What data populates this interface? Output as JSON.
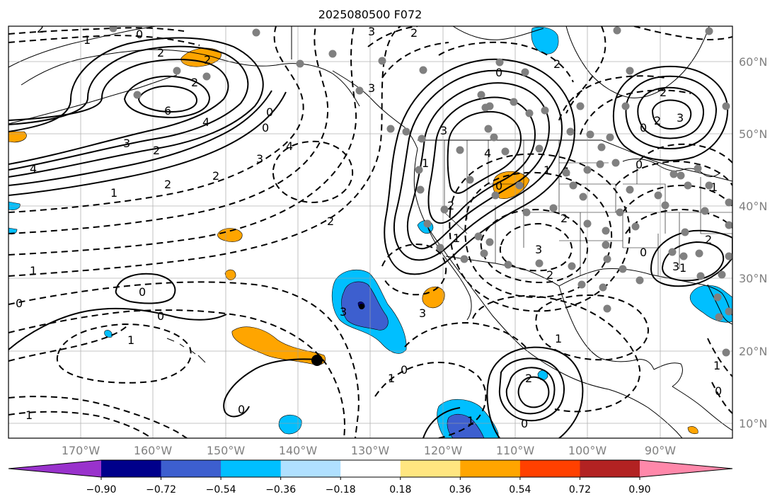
{
  "title": "2025080500 F072",
  "map": {
    "lon_range": [
      -180,
      -80
    ],
    "lat_range": [
      8,
      65
    ],
    "latitude_labels": [
      "60°N",
      "50°N",
      "40°N",
      "30°N",
      "20°N",
      "10°N"
    ],
    "longitude_labels": [
      "170°W",
      "160°W",
      "150°W",
      "140°W",
      "130°W",
      "120°W",
      "110°W",
      "100°W",
      "90°W"
    ],
    "contour_style": "solid = positive, dashed = negative",
    "contour_labels": [
      "2",
      "1",
      "0",
      "2",
      "3",
      "2",
      "2",
      "0",
      "2",
      "2",
      "6",
      "4",
      "3",
      "2",
      "4",
      "1",
      "2",
      "0",
      "3",
      "4",
      "2",
      "2",
      "3",
      "4",
      "2",
      "3",
      "2",
      "1",
      "0",
      "2",
      "2",
      "3",
      "3",
      "2",
      "1",
      "1",
      "0",
      "0",
      "1",
      "0",
      "1",
      "1",
      "0",
      "1",
      "2",
      "0",
      "0",
      "1",
      "1",
      "2",
      "3",
      "3",
      "1",
      "0",
      "1",
      "0",
      "0",
      "0",
      "1",
      "0",
      "3",
      "1"
    ],
    "station_marker_color": "#808080"
  },
  "colorbar": {
    "tick_labels": [
      "−0.90",
      "−0.72",
      "−0.54",
      "−0.36",
      "−0.18",
      "0.18",
      "0.36",
      "0.54",
      "0.72",
      "0.90"
    ],
    "colors": [
      "#9932cc",
      "#00008b",
      "#3d5fcf",
      "#00bfff",
      "#b0e0ff",
      "#ffffff",
      "#ffe680",
      "#ffa500",
      "#ff4000",
      "#b22222",
      "#ff88aa"
    ],
    "extend": "both"
  }
}
